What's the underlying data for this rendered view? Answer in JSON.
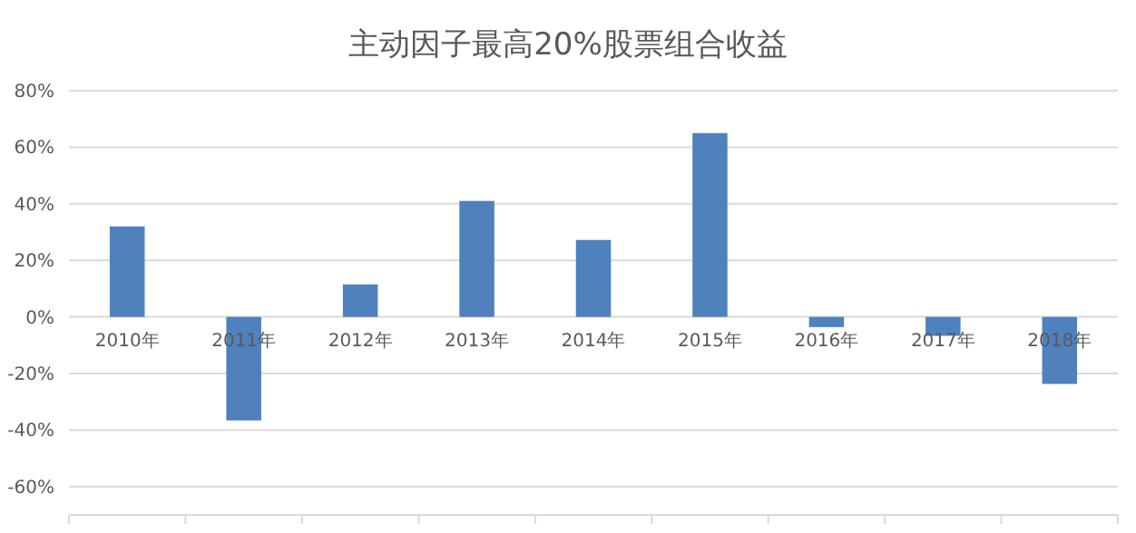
{
  "chart_data": {
    "type": "bar",
    "title": "主动因子最高20%股票组合收益",
    "categories": [
      "2010年",
      "2011年",
      "2012年",
      "2013年",
      "2014年",
      "2015年",
      "2016年",
      "2017年",
      "2018年"
    ],
    "values": [
      32,
      -36.6,
      11.5,
      41,
      27.2,
      65,
      -3.6,
      -6.7,
      -23.7
    ],
    "color": "#4f81bd",
    "ylim": [
      -70,
      80
    ],
    "yticks": [
      {
        "value": -60,
        "label": "-60%"
      },
      {
        "value": -40,
        "label": "-40%"
      },
      {
        "value": -20,
        "label": "-20%"
      },
      {
        "value": 0,
        "label": "0%"
      },
      {
        "value": 20,
        "label": "20%"
      },
      {
        "value": 40,
        "label": "40%"
      },
      {
        "value": 60,
        "label": "60%"
      },
      {
        "value": 80,
        "label": "80%"
      }
    ],
    "grid": "y"
  }
}
